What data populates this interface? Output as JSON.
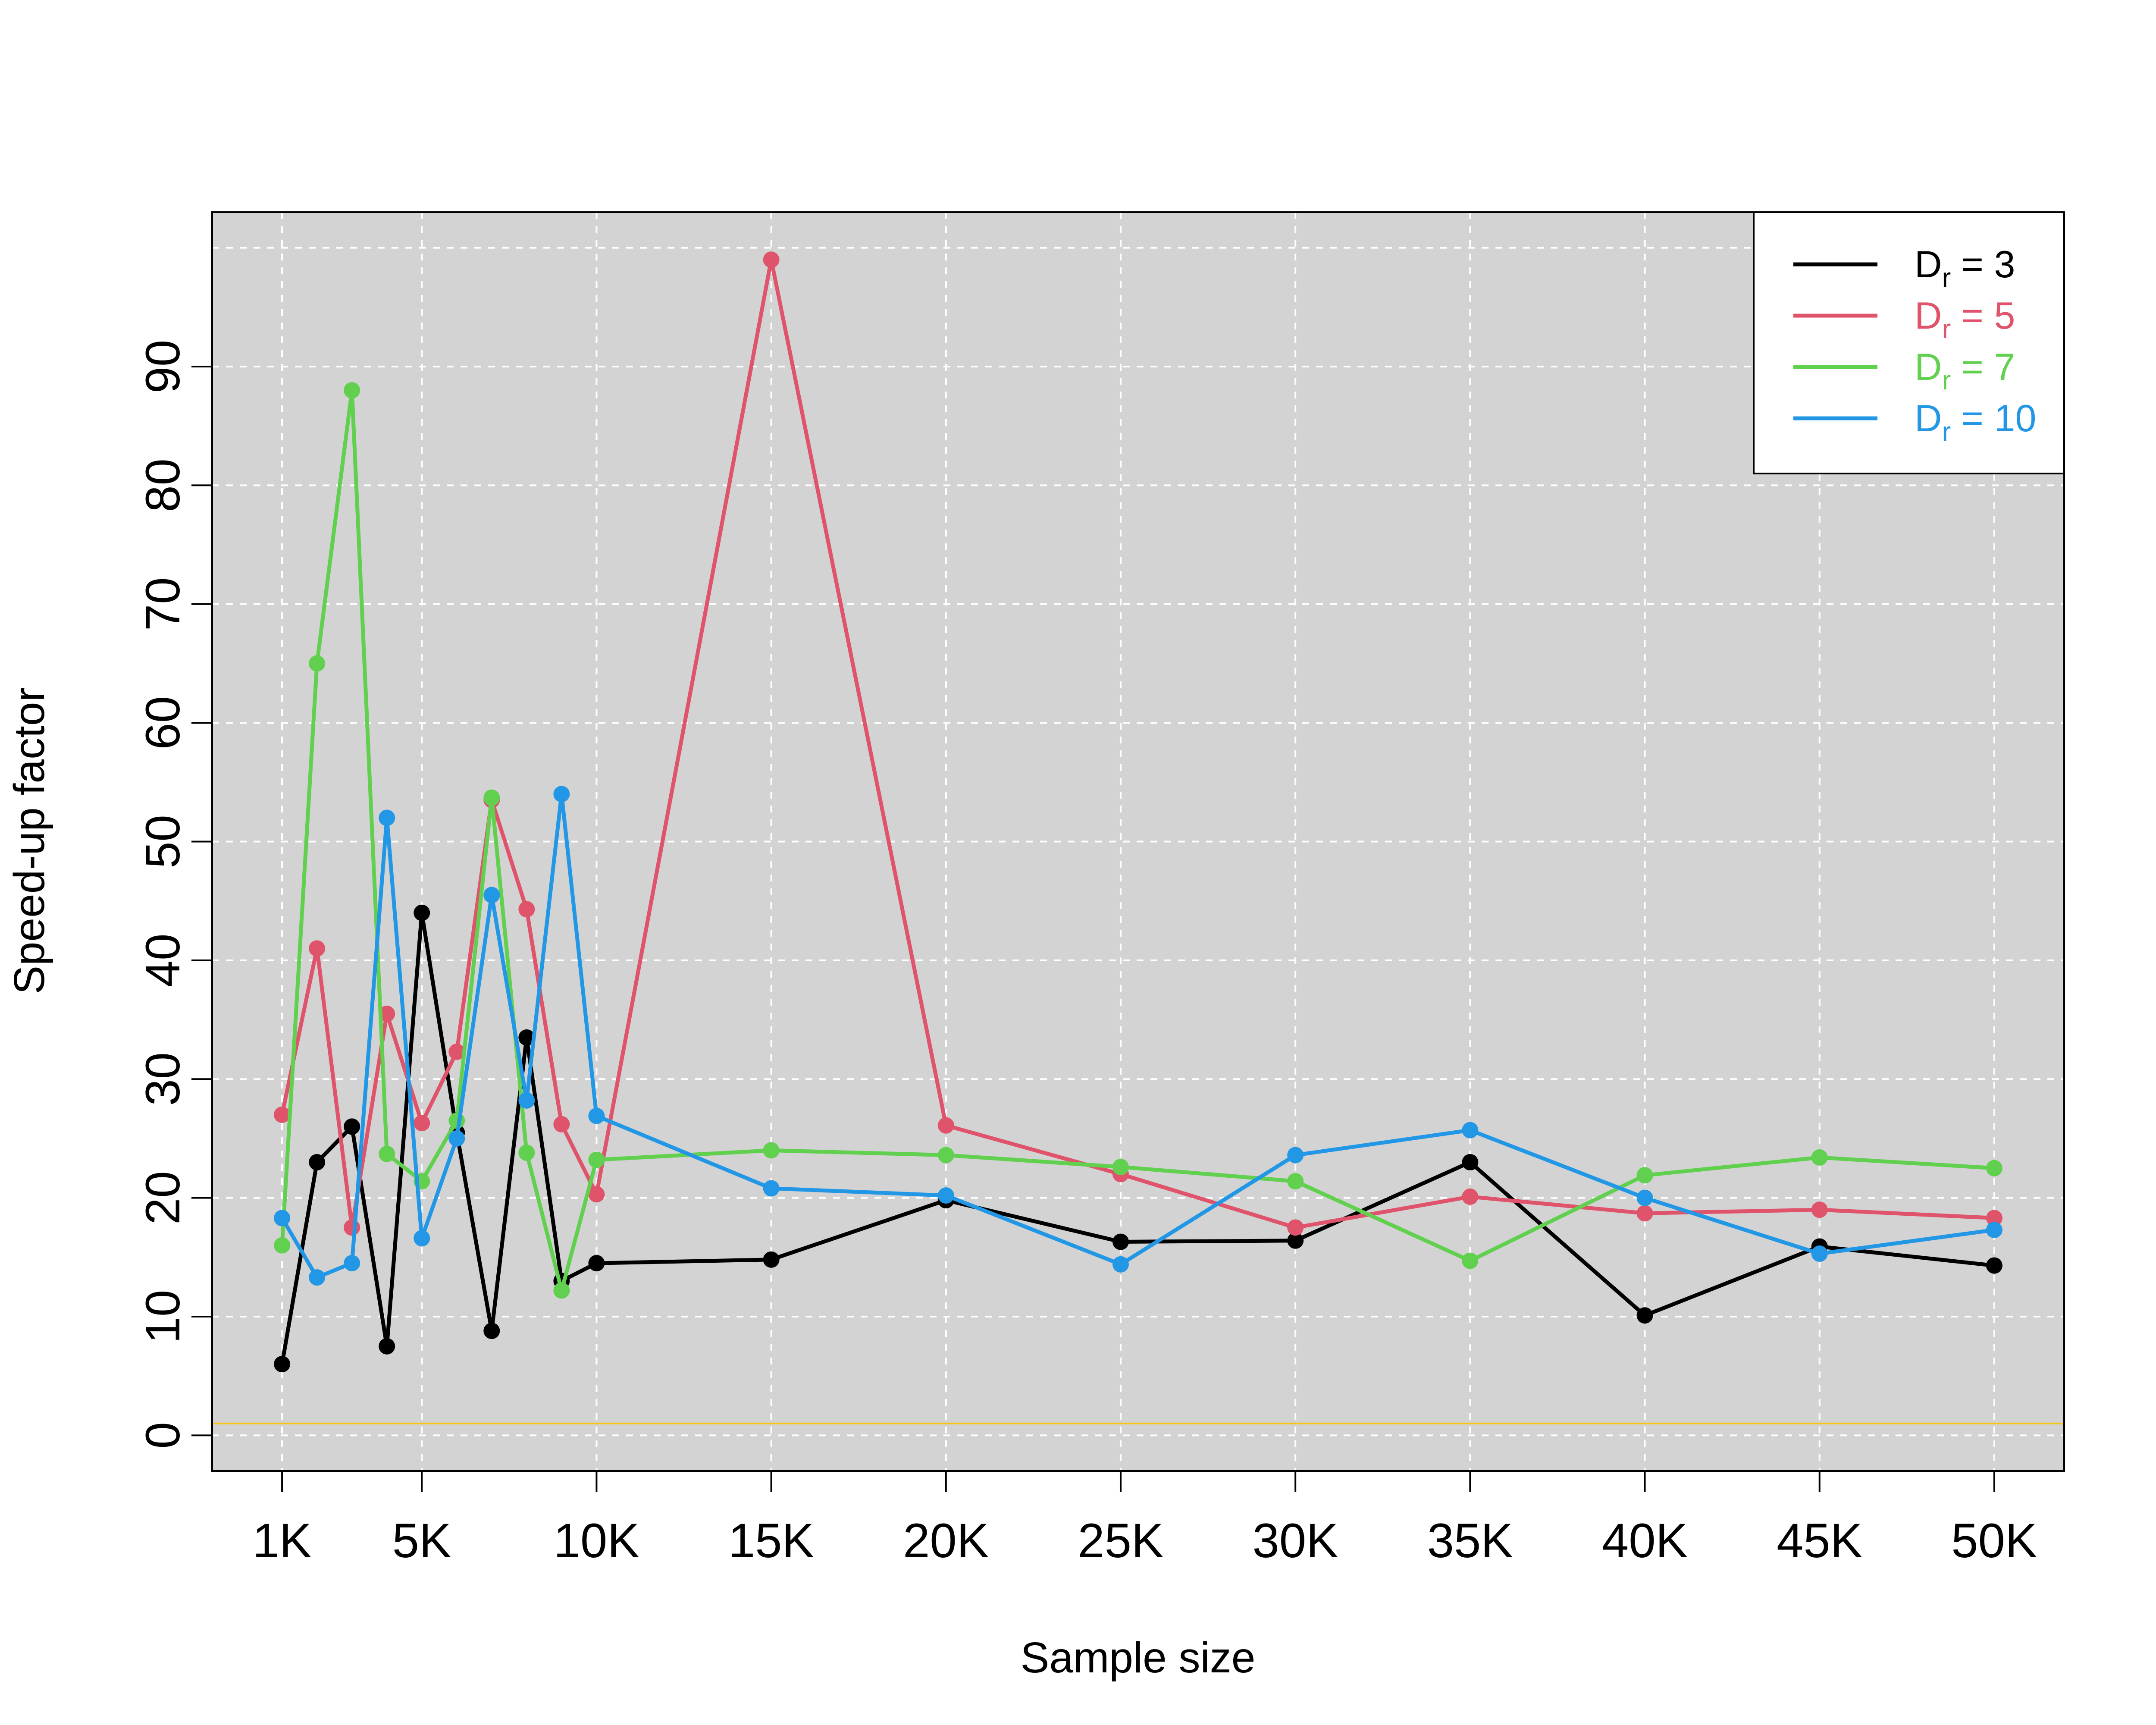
{
  "chart_data": {
    "type": "line",
    "title": "",
    "xlabel": "Sample size",
    "ylabel": "Speed-up factor",
    "xlim": [
      -1000,
      52000
    ],
    "ylim": [
      -3,
      103
    ],
    "x_ticks": [
      1000,
      5000,
      10000,
      15000,
      20000,
      25000,
      30000,
      35000,
      40000,
      45000,
      50000
    ],
    "x_tick_labels": [
      "1K",
      "5K",
      "10K",
      "15K",
      "20K",
      "25K",
      "30K",
      "35K",
      "40K",
      "45K",
      "50K"
    ],
    "y_ticks": [
      0,
      10,
      20,
      30,
      40,
      50,
      60,
      70,
      80,
      90
    ],
    "y_tick_labels": [
      "0",
      "10",
      "20",
      "30",
      "40",
      "50",
      "60",
      "70",
      "80",
      "90"
    ],
    "y_grid_extra": [
      100
    ],
    "x": [
      1000,
      2000,
      3000,
      4000,
      5000,
      6000,
      7000,
      8000,
      9000,
      10000,
      15000,
      20000,
      25000,
      30000,
      35000,
      40000,
      45000,
      50000
    ],
    "reference_line": {
      "y": 1,
      "color": "#F5C710"
    },
    "grid": true,
    "background": "#D3D3D3",
    "legend": {
      "position": "top-right"
    },
    "series": [
      {
        "name": "3",
        "color": "#000000",
        "values": [
          6,
          23,
          26,
          7.5,
          44,
          25.5,
          8.8,
          33.5,
          13,
          14.5,
          14.8,
          19.8,
          16.3,
          16.4,
          23,
          10.1,
          15.9,
          14.3
        ]
      },
      {
        "name": "5",
        "color": "#DF536B",
        "values": [
          27,
          41,
          17.5,
          35.5,
          26.3,
          32.3,
          53.5,
          44.3,
          26.2,
          20.3,
          99,
          26.1,
          22,
          17.5,
          20.1,
          18.7,
          19,
          18.3
        ]
      },
      {
        "name": "7",
        "color": "#61D04F",
        "values": [
          16,
          65,
          88,
          23.7,
          21.4,
          26.5,
          53.7,
          23.8,
          12.2,
          23.2,
          24,
          23.6,
          22.6,
          21.4,
          14.7,
          21.9,
          23.4,
          22.5
        ]
      },
      {
        "name": "10",
        "color": "#2297E6",
        "values": [
          18.3,
          13.3,
          14.5,
          52,
          16.6,
          25,
          45.5,
          28.2,
          54,
          26.9,
          20.8,
          20.2,
          14.4,
          23.6,
          25.7,
          20,
          15.3,
          17.3
        ]
      }
    ]
  }
}
